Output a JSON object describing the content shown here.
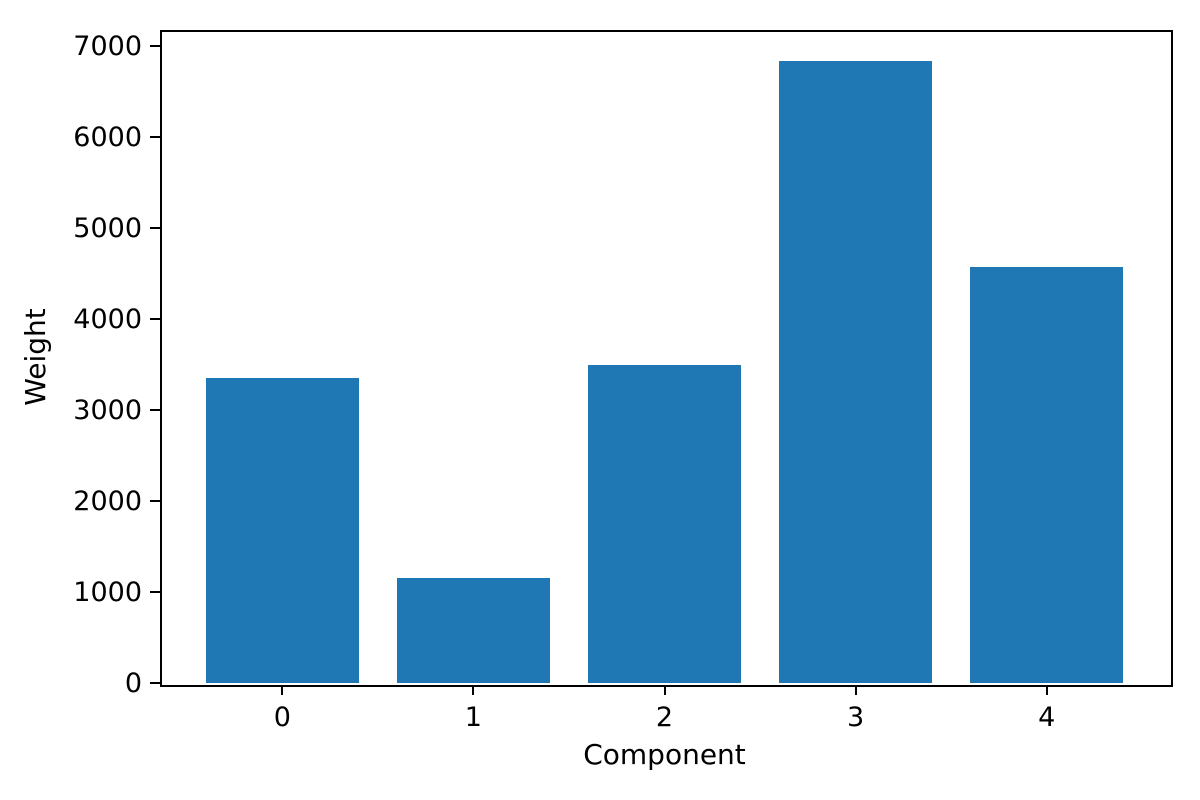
{
  "chart_data": {
    "type": "bar",
    "title": "",
    "xlabel": "Component",
    "ylabel": "Weight",
    "categories": [
      "0",
      "1",
      "2",
      "3",
      "4"
    ],
    "values": [
      3350,
      1150,
      3500,
      6835,
      4570
    ],
    "yticks": [
      0,
      1000,
      2000,
      3000,
      4000,
      5000,
      6000,
      7000
    ],
    "ytick_labels": [
      "0",
      "1000",
      "2000",
      "3000",
      "4000",
      "5000",
      "6000",
      "7000"
    ],
    "ylim": [
      0,
      7177
    ],
    "xlim": [
      -0.64,
      4.64
    ],
    "bar_width_data_units": 0.8,
    "grid": false,
    "legend": null,
    "bar_color": "#1f77b4",
    "axis_color": "#000000",
    "background_color": "#ffffff"
  }
}
